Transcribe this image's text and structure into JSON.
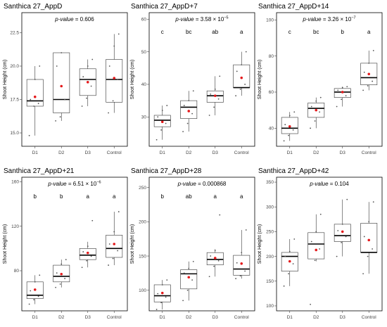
{
  "chart_data": [
    {
      "type": "box",
      "title": "Santhica 27_AppD",
      "ylabel": "Shoot Height (cm)",
      "ylim": [
        14.0,
        24.0
      ],
      "yticks": [
        15.0,
        17.5,
        20.0,
        22.5
      ],
      "ytick_labels": [
        "15.0",
        "17.5",
        "20.0",
        "22.5"
      ],
      "pvalue_label": "p-value",
      "pvalue_text": " = 0.606",
      "categories": [
        "D1",
        "D2",
        "D3",
        "Control"
      ],
      "group_letters": [
        "",
        "",
        "",
        ""
      ],
      "boxes": [
        {
          "min": 14.8,
          "q1": 17.0,
          "median": 17.4,
          "q3": 19.0,
          "max": 20.0,
          "mean": 17.7,
          "points": [
            14.8,
            17.0,
            17.2,
            17.5,
            19.0,
            20.0
          ]
        },
        {
          "min": 15.9,
          "q1": 16.5,
          "median": 17.5,
          "q3": 21.0,
          "max": 21.0,
          "mean": 18.5,
          "points": [
            15.9,
            16.2,
            17.5,
            20.0,
            21.0
          ]
        },
        {
          "min": 17.0,
          "q1": 17.8,
          "median": 19.0,
          "q3": 19.8,
          "max": 20.5,
          "mean": 18.8,
          "points": [
            17.0,
            17.6,
            18.5,
            19.2,
            20.0,
            20.5
          ]
        },
        {
          "min": 16.5,
          "q1": 17.3,
          "median": 19.0,
          "q3": 20.5,
          "max": 22.4,
          "mean": 19.1,
          "points": [
            16.5,
            17.4,
            19.0,
            20.0,
            21.5,
            22.4
          ]
        }
      ]
    },
    {
      "type": "box",
      "title": "Santhica 27_AppD+7",
      "ylabel": "Shoot Height (cm)",
      "ylim": [
        21.0,
        62.0
      ],
      "yticks": [
        30,
        40,
        50,
        60
      ],
      "ytick_labels": [
        "30",
        "40",
        "50",
        "60"
      ],
      "pvalue_label": "p-value",
      "pvalue_text": " = 3.58 × 10",
      "pvalue_exp": "−5",
      "categories": [
        "D1",
        "D2",
        "D3",
        "Control"
      ],
      "group_letters": [
        "c",
        "bc",
        "ab",
        "a"
      ],
      "boxes": [
        {
          "min": 23.0,
          "q1": 27.0,
          "median": 29.0,
          "q3": 30.5,
          "max": 33.5,
          "mean": 28.5,
          "points": [
            23.0,
            26.0,
            28.0,
            30.0,
            32.0,
            33.5
          ]
        },
        {
          "min": 25.5,
          "q1": 29.5,
          "median": 33.0,
          "q3": 35.0,
          "max": 38.0,
          "mean": 31.8,
          "points": [
            25.5,
            28.0,
            31.0,
            33.5,
            35.0,
            38.0
          ]
        },
        {
          "min": 30.5,
          "q1": 34.5,
          "median": 36.5,
          "q3": 38.0,
          "max": 42.5,
          "mean": 36.5,
          "points": [
            30.5,
            33.0,
            35.5,
            37.0,
            38.5,
            42.5
          ]
        },
        {
          "min": 36.5,
          "q1": 39.0,
          "median": 39.0,
          "q3": 46.0,
          "max": 50.0,
          "mean": 42.0,
          "points": [
            36.5,
            38.5,
            40.0,
            44.0,
            46.0,
            50.0
          ]
        }
      ]
    },
    {
      "type": "box",
      "title": "Santhica 27_AppD+14",
      "ylabel": "Shoot Height (cm)",
      "ylim": [
        30.0,
        104.0
      ],
      "yticks": [
        40,
        60,
        80,
        100
      ],
      "ytick_labels": [
        "40",
        "60",
        "80",
        "100"
      ],
      "pvalue_label": "p-value",
      "pvalue_text": " = 3.26 × 10",
      "pvalue_exp": "−7",
      "categories": [
        "D1",
        "D2",
        "D3",
        "Control"
      ],
      "group_letters": [
        "c",
        "bc",
        "b",
        "a"
      ],
      "boxes": [
        {
          "min": 33.0,
          "q1": 37.0,
          "median": 40.0,
          "q3": 46.0,
          "max": 49.0,
          "mean": 41.0,
          "points": [
            33.0,
            36.0,
            39.0,
            42.0,
            47.0,
            49.0
          ]
        },
        {
          "min": 40.0,
          "q1": 46.0,
          "median": 51.0,
          "q3": 54.0,
          "max": 57.0,
          "mean": 50.0,
          "points": [
            40.0,
            44.0,
            49.0,
            52.0,
            55.0,
            57.0
          ]
        },
        {
          "min": 52.0,
          "q1": 57.0,
          "median": 60.0,
          "q3": 62.0,
          "max": 63.0,
          "mean": 60.0,
          "points": [
            52.0,
            56.0,
            58.0,
            61.0,
            62.5,
            63.0
          ]
        },
        {
          "min": 61.0,
          "q1": 64.0,
          "median": 68.0,
          "q3": 76.0,
          "max": 83.0,
          "mean": 70.0,
          "points": [
            61.0,
            63.5,
            66.0,
            71.0,
            76.0,
            83.0
          ]
        }
      ]
    },
    {
      "type": "box",
      "title": "Santhica 27_AppD+21",
      "ylabel": "Shoot Height (cm)",
      "ylim": [
        44.0,
        164.0
      ],
      "yticks": [
        80,
        120,
        160
      ],
      "ytick_labels": [
        "80",
        "120",
        "160"
      ],
      "pvalue_label": "p-value",
      "pvalue_text": " = 6.51 × 10",
      "pvalue_exp": "−6",
      "categories": [
        "D1",
        "D2",
        "D3",
        "Control"
      ],
      "group_letters": [
        "b",
        "b",
        "a",
        "a"
      ],
      "boxes": [
        {
          "min": 50.0,
          "q1": 55.0,
          "median": 58.0,
          "q3": 70.0,
          "max": 76.0,
          "mean": 63.0,
          "points": [
            50.0,
            54.0,
            57.0,
            62.0,
            70.0,
            76.0
          ]
        },
        {
          "min": 65.0,
          "q1": 70.0,
          "median": 75.0,
          "q3": 85.0,
          "max": 90.0,
          "mean": 77.0,
          "points": [
            65.0,
            68.0,
            73.0,
            78.0,
            86.0,
            90.0
          ]
        },
        {
          "min": 83.0,
          "q1": 90.0,
          "median": 94.0,
          "q3": 100.0,
          "max": 106.0,
          "mean": 96.0,
          "points": [
            83.0,
            89.0,
            93.0,
            97.0,
            102.0,
            125.0
          ]
        },
        {
          "min": 85.0,
          "q1": 92.0,
          "median": 100.0,
          "q3": 112.0,
          "max": 133.0,
          "mean": 104.0,
          "points": [
            85.0,
            91.0,
            98.0,
            104.0,
            115.0,
            133.0
          ]
        }
      ]
    },
    {
      "type": "box",
      "title": "Santhica 27_AppD+28",
      "ylabel": "Shoot Height (cm)",
      "ylim": [
        70.0,
        265.0
      ],
      "yticks": [
        100,
        150,
        200,
        250
      ],
      "ytick_labels": [
        "100",
        "150",
        "200",
        "250"
      ],
      "pvalue_label": "p-value",
      "pvalue_text": " = 0.000868",
      "categories": [
        "D1",
        "D2",
        "D3",
        "Control"
      ],
      "group_letters": [
        "b",
        "ab",
        "a",
        "a"
      ],
      "boxes": [
        {
          "min": 72.0,
          "q1": 83.0,
          "median": 92.0,
          "q3": 108.0,
          "max": 115.0,
          "mean": 96.0,
          "points": [
            72.0,
            82.0,
            90.0,
            95.0,
            108.0,
            115.0
          ]
        },
        {
          "min": 85.0,
          "q1": 102.0,
          "median": 124.0,
          "q3": 130.0,
          "max": 142.0,
          "mean": 119.0,
          "points": [
            85.0,
            100.0,
            115.0,
            125.0,
            132.0,
            142.0
          ]
        },
        {
          "min": 120.0,
          "q1": 137.0,
          "median": 145.0,
          "q3": 155.0,
          "max": 160.0,
          "mean": 147.0,
          "points": [
            120.0,
            135.0,
            143.0,
            150.0,
            158.0,
            210.0
          ]
        },
        {
          "min": 117.0,
          "q1": 122.0,
          "median": 131.0,
          "q3": 151.0,
          "max": 188.0,
          "mean": 139.0,
          "points": [
            117.0,
            121.0,
            128.0,
            140.0,
            155.0,
            188.0
          ]
        }
      ]
    },
    {
      "type": "box",
      "title": "Santhica 27_AppD+42",
      "ylabel": "Shoot Height (cm)",
      "ylim": [
        90.0,
        360.0
      ],
      "yticks": [
        100,
        150,
        200,
        250,
        300,
        350
      ],
      "ytick_labels": [
        "100",
        "150",
        "200",
        "250",
        "300",
        "350"
      ],
      "pvalue_label": "p-value",
      "pvalue_text": " = 0.104",
      "categories": [
        "D1",
        "D2",
        "D3",
        "Control"
      ],
      "group_letters": [
        "",
        "",
        "",
        ""
      ],
      "boxes": [
        {
          "min": 140.0,
          "q1": 170.0,
          "median": 200.0,
          "q3": 208.0,
          "max": 235.0,
          "mean": 190.0,
          "points": [
            140.0,
            165.0,
            185.0,
            200.0,
            210.0,
            235.0
          ]
        },
        {
          "min": 190.0,
          "q1": 195.0,
          "median": 225.0,
          "q3": 248.0,
          "max": 285.0,
          "mean": 213.0,
          "points": [
            103.0,
            192.0,
            215.0,
            230.0,
            250.0,
            285.0
          ]
        },
        {
          "min": 200.0,
          "q1": 230.0,
          "median": 242.0,
          "q3": 265.0,
          "max": 315.0,
          "mean": 250.0,
          "points": [
            200.0,
            228.0,
            240.0,
            252.0,
            265.0,
            315.0
          ]
        },
        {
          "min": 165.0,
          "q1": 208.0,
          "median": 208.0,
          "q3": 267.0,
          "max": 310.0,
          "mean": 233.0,
          "points": [
            165.0,
            200.0,
            215.0,
            240.0,
            270.0,
            310.0
          ]
        }
      ]
    }
  ],
  "colors": {
    "mean": "#e41a1c",
    "box_stroke": "#333333",
    "panel_border": "#000000",
    "points": "#555555"
  }
}
